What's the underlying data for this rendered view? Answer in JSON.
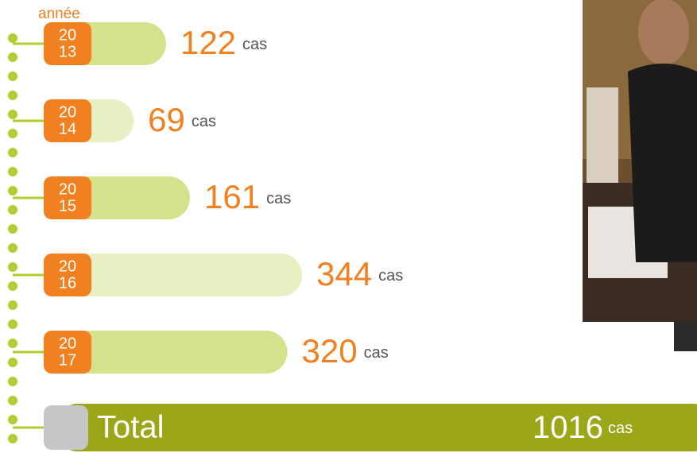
{
  "chart_data": {
    "type": "bar",
    "axis_label": "année",
    "categories": [
      [
        "20",
        "13"
      ],
      [
        "20",
        "14"
      ],
      [
        "20",
        "15"
      ],
      [
        "20",
        "16"
      ],
      [
        "20",
        "17"
      ]
    ],
    "values": [
      122,
      69,
      161,
      344,
      320
    ],
    "unit": "cas",
    "colors": [
      "#d5e28b",
      "#e7efc3"
    ],
    "label_color": "#f08020",
    "total": {
      "label": "Total",
      "value": 1016,
      "color": "#9ba618"
    }
  }
}
